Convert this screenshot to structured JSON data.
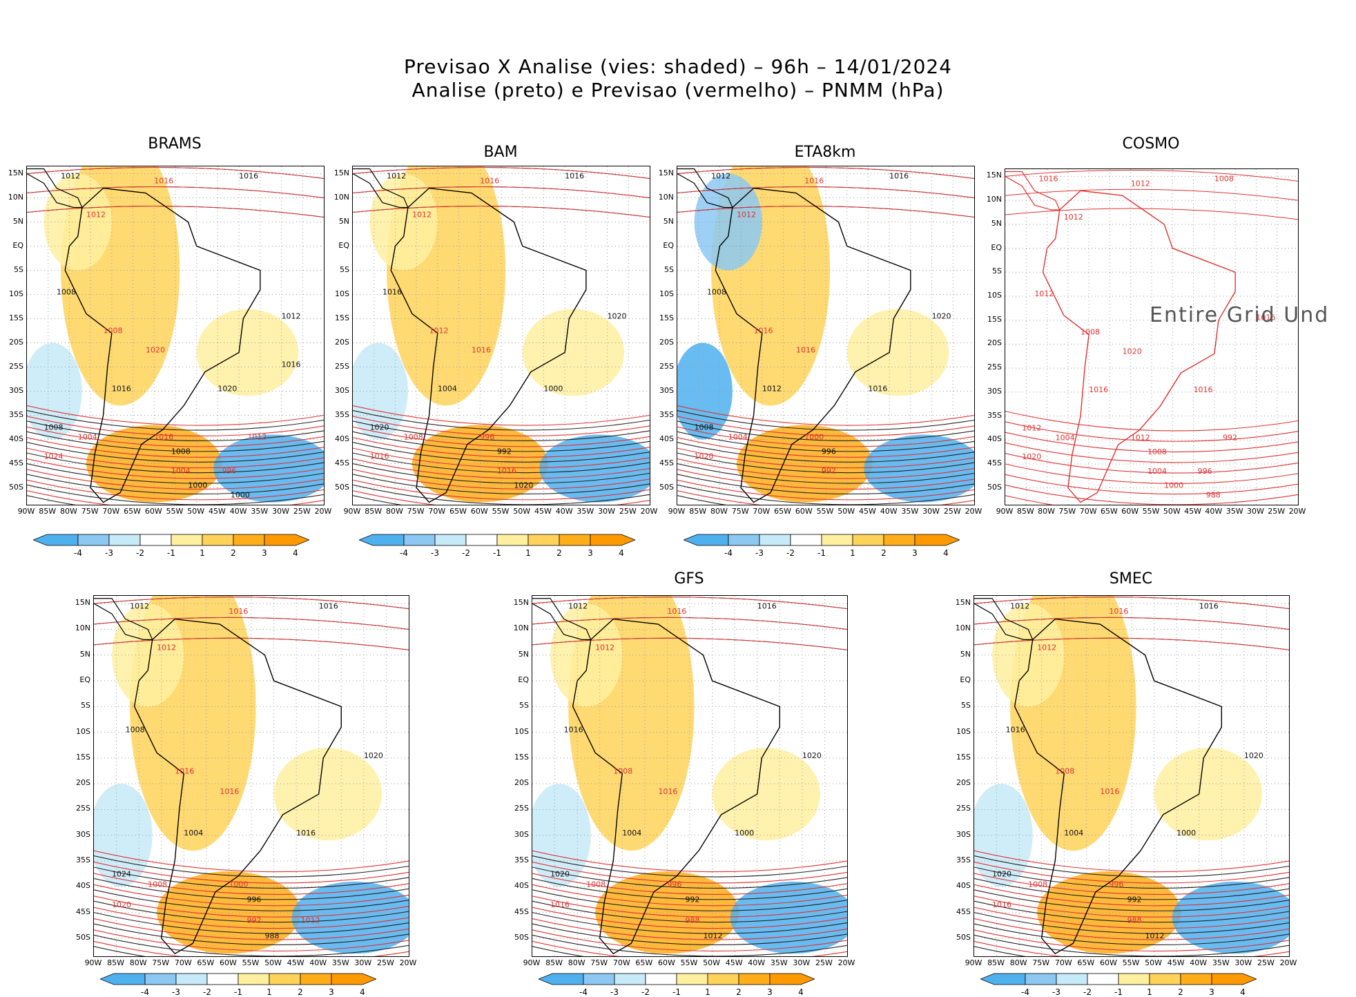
{
  "header": {
    "line1": "Previsao X Analise (vies: shaded) – 96h – 14/01/2024",
    "line2": "Analise (preto) e Previsao (vermelho) – PNMM (hPa)"
  },
  "axes": {
    "lat_labels": [
      "15N",
      "10N",
      "5N",
      "EQ",
      "5S",
      "10S",
      "15S",
      "20S",
      "25S",
      "30S",
      "35S",
      "40S",
      "45S",
      "50S"
    ],
    "lon_labels": [
      "90W",
      "85W",
      "80W",
      "75W",
      "70W",
      "65W",
      "60W",
      "55W",
      "50W",
      "45W",
      "40W",
      "35W",
      "30W",
      "25W",
      "20W"
    ]
  },
  "colorbar": {
    "labels": [
      "-4",
      "-3",
      "-2",
      "-1",
      "1",
      "2",
      "3",
      "4"
    ],
    "colors": [
      "#4fb0ee",
      "#8cc8f2",
      "#c7eaf8",
      "#ffffff",
      "#fff0a0",
      "#ffd35a",
      "#ffae1a",
      "#ff9900"
    ]
  },
  "panels": [
    {
      "id": "brams",
      "title": "BRAMS",
      "contours": [
        "1012",
        "1016",
        "1016",
        "1012",
        "1008",
        "1008",
        "1012",
        "1020",
        "1016",
        "1004",
        "1008",
        "1024",
        "1020",
        "1016",
        "1008",
        "1004",
        "1000",
        "996",
        "1000",
        "1012",
        "1016"
      ]
    },
    {
      "id": "bam",
      "title": "BAM",
      "contours": [
        "1012",
        "1016",
        "1016",
        "1012",
        "1016",
        "1012",
        "1020",
        "1016",
        "1004",
        "1008",
        "1020",
        "1016",
        "1000",
        "996",
        "992",
        "1016",
        "1020"
      ]
    },
    {
      "id": "eta8km",
      "title": "ETA8km",
      "contours": [
        "1012",
        "1016",
        "1016",
        "1012",
        "1008",
        "1016",
        "1020",
        "1016",
        "1012",
        "1004",
        "1008",
        "1020",
        "1016",
        "1000",
        "996",
        "992"
      ]
    },
    {
      "id": "cosmo",
      "title": "COSMO",
      "undefined_label": "Entire Grid Und",
      "contours": [
        "1016",
        "1012",
        "1008",
        "1012",
        "1012",
        "1008",
        "1016",
        "1020",
        "1016",
        "1004",
        "1012",
        "1020",
        "1016",
        "1012",
        "1008",
        "1004",
        "1000",
        "996",
        "988",
        "992"
      ]
    },
    {
      "id": "panel5",
      "title": "",
      "contours": [
        "1012",
        "1016",
        "1016",
        "1012",
        "1008",
        "1016",
        "1020",
        "1016",
        "1004",
        "1008",
        "1024",
        "1020",
        "1016",
        "1000",
        "996",
        "992",
        "988",
        "1012"
      ]
    },
    {
      "id": "gfs",
      "title": "GFS",
      "contours": [
        "1012",
        "1016",
        "1016",
        "1012",
        "1016",
        "1008",
        "1020",
        "1016",
        "1004",
        "1008",
        "1020",
        "1016",
        "1000",
        "996",
        "992",
        "988",
        "1012"
      ]
    },
    {
      "id": "smec",
      "title": "SMEC",
      "contours": [
        "1012",
        "1016",
        "1016",
        "1012",
        "1016",
        "1008",
        "1020",
        "1016",
        "1004",
        "1008",
        "1020",
        "1016",
        "1000",
        "996",
        "992",
        "988",
        "1012"
      ]
    }
  ]
}
